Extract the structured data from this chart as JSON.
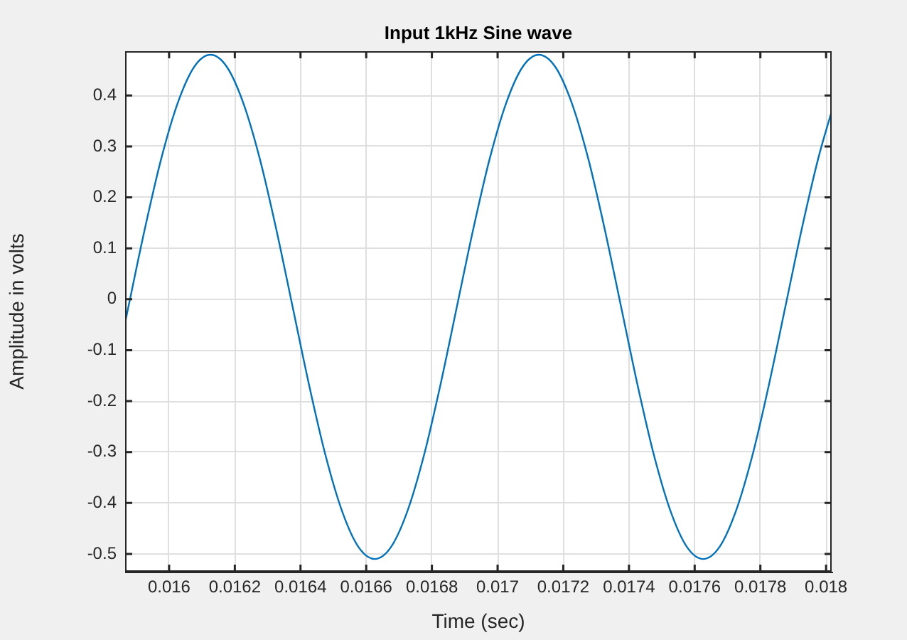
{
  "chart_data": {
    "type": "line",
    "title": "Input 1kHz Sine wave",
    "xlabel": "Time (sec)",
    "ylabel": "Amplitude in volts",
    "x": [
      0.015866,
      0.015876,
      0.015926,
      0.015976,
      0.016026,
      0.016076,
      0.016126,
      0.016176,
      0.016226,
      0.016276,
      0.016326,
      0.016376,
      0.016426,
      0.016476,
      0.016526,
      0.016576,
      0.016626,
      0.016676,
      0.016726,
      0.016776,
      0.016826,
      0.016876,
      0.016926,
      0.016976,
      0.017026,
      0.017076,
      0.017126,
      0.017176,
      0.017226,
      0.017276,
      0.017326,
      0.017376,
      0.017426,
      0.017476,
      0.017526,
      0.017576,
      0.017626,
      0.017676,
      0.017726,
      0.017776,
      0.017826,
      0.017876,
      0.017926,
      0.017976,
      0.018017
    ],
    "series": [
      {
        "color": "#0072bd",
        "values": [
          -0.046,
          -0.015,
          0.138,
          0.276,
          0.385,
          0.456,
          0.48,
          0.456,
          0.385,
          0.276,
          0.138,
          -0.015,
          -0.168,
          -0.306,
          -0.415,
          -0.486,
          -0.51,
          -0.486,
          -0.415,
          -0.306,
          -0.168,
          -0.015,
          0.138,
          0.276,
          0.385,
          0.456,
          0.48,
          0.456,
          0.385,
          0.276,
          0.138,
          -0.015,
          -0.168,
          -0.306,
          -0.415,
          -0.486,
          -0.51,
          -0.486,
          -0.415,
          -0.306,
          -0.168,
          -0.015,
          0.138,
          0.276,
          0.369
        ]
      }
    ],
    "xlim": [
      0.015866,
      0.018017
    ],
    "ylim": [
      -0.535,
      0.487
    ],
    "xticks": [
      0.016,
      {
        "value": 0.0162,
        "label": "0.0162"
      },
      {
        "value": 0.0164,
        "label": "0.0164"
      },
      {
        "value": 0.0166,
        "label": "0.0166"
      },
      {
        "value": 0.0168,
        "label": "0.0168"
      },
      0.017,
      {
        "value": 0.0172,
        "label": "0.0172"
      },
      {
        "value": 0.0174,
        "label": "0.0174"
      },
      {
        "value": 0.0176,
        "label": "0.0176"
      },
      {
        "value": 0.0178,
        "label": "0.0178"
      },
      0.018
    ],
    "yticks": [
      -0.5,
      -0.4,
      -0.3,
      -0.2,
      -0.1,
      0,
      0.1,
      0.2,
      0.3,
      0.4
    ],
    "grid": true,
    "legend": false,
    "marker": "none",
    "line_style": "solid"
  }
}
